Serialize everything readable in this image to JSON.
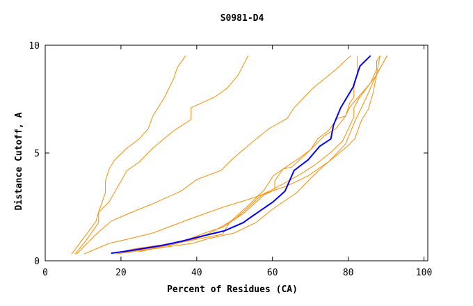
{
  "chart_data": {
    "type": "line",
    "title": "S0981-D4",
    "xlabel": "Percent of Residues (CA)",
    "ylabel": "Distance Cutoff, A",
    "xlim": [
      0,
      101
    ],
    "ylim": [
      0,
      10
    ],
    "xticks": [
      "0",
      "20",
      "40",
      "60",
      "80",
      "100"
    ],
    "yticks": [
      "0",
      "5",
      "10"
    ],
    "grid": false,
    "colors": {
      "highlight": "#0000ff",
      "others": "#ff8c00"
    },
    "series": [
      {
        "color": "#ff8c00",
        "points": [
          [
            6.97,
            0.32
          ],
          [
            11.4,
            1.35
          ],
          [
            13.4,
            1.84
          ],
          [
            14.1,
            2.26
          ],
          [
            15.9,
            3.16
          ],
          [
            15.9,
            3.71
          ],
          [
            16.9,
            4.26
          ],
          [
            18.3,
            4.68
          ],
          [
            21.6,
            5.23
          ],
          [
            24.8,
            5.65
          ],
          [
            27.2,
            6.13
          ],
          [
            28.4,
            6.71
          ],
          [
            31.5,
            7.58
          ],
          [
            33.9,
            8.45
          ],
          [
            34.9,
            8.97
          ],
          [
            37.1,
            9.52
          ]
        ]
      },
      {
        "color": "#ff8c00",
        "points": [
          [
            7.9,
            0.32
          ],
          [
            10.6,
            0.9
          ],
          [
            14.1,
            1.77
          ],
          [
            14.1,
            2.26
          ],
          [
            16.9,
            2.74
          ],
          [
            21.6,
            4.19
          ],
          [
            24.8,
            4.58
          ],
          [
            28.4,
            5.23
          ],
          [
            33.9,
            6.03
          ],
          [
            38.5,
            6.55
          ],
          [
            38.5,
            7.1
          ],
          [
            44.6,
            7.58
          ],
          [
            48.0,
            8.0
          ],
          [
            50.9,
            8.61
          ],
          [
            53.6,
            9.52
          ]
        ]
      },
      {
        "color": "#ff8c00",
        "points": [
          [
            8.3,
            0.32
          ],
          [
            13.8,
            1.29
          ],
          [
            17.4,
            1.84
          ],
          [
            21.6,
            2.16
          ],
          [
            28.4,
            2.65
          ],
          [
            35.8,
            3.23
          ],
          [
            40.0,
            3.77
          ],
          [
            46.4,
            4.19
          ],
          [
            49.2,
            4.68
          ],
          [
            52.8,
            5.23
          ],
          [
            57.2,
            5.87
          ],
          [
            59.1,
            6.13
          ],
          [
            63.9,
            6.61
          ],
          [
            65.7,
            7.1
          ],
          [
            70.6,
            8.0
          ],
          [
            76.7,
            8.87
          ],
          [
            80.7,
            9.52
          ]
        ]
      },
      {
        "color": "#ff8c00",
        "points": [
          [
            10.3,
            0.32
          ],
          [
            16.9,
            0.81
          ],
          [
            22.4,
            1.03
          ],
          [
            28.4,
            1.29
          ],
          [
            38.2,
            1.94
          ],
          [
            46.8,
            2.48
          ],
          [
            54.1,
            2.87
          ],
          [
            58.2,
            3.13
          ],
          [
            63.9,
            3.48
          ],
          [
            69.4,
            3.94
          ],
          [
            74.9,
            4.61
          ],
          [
            79.3,
            5.42
          ],
          [
            81.7,
            6.45
          ],
          [
            84.8,
            7.58
          ],
          [
            87.2,
            8.55
          ],
          [
            90.3,
            9.52
          ]
        ]
      },
      {
        "color": "#ff8c00",
        "points": [
          [
            18.7,
            0.32
          ],
          [
            38.9,
            0.81
          ],
          [
            43.1,
            1.03
          ],
          [
            49.9,
            1.29
          ],
          [
            55.6,
            1.77
          ],
          [
            60.2,
            2.42
          ],
          [
            66.4,
            3.16
          ],
          [
            69.4,
            3.71
          ],
          [
            73.8,
            4.45
          ],
          [
            79.8,
            5.32
          ],
          [
            81.7,
            5.65
          ],
          [
            83.5,
            6.52
          ],
          [
            85.3,
            7.03
          ],
          [
            86.6,
            7.81
          ],
          [
            88.4,
            9.52
          ]
        ]
      },
      {
        "color": "#ff8c00",
        "points": [
          [
            19.3,
            0.39
          ],
          [
            23.5,
            0.55
          ],
          [
            35.8,
            0.87
          ],
          [
            43.1,
            1.35
          ],
          [
            46.8,
            1.55
          ],
          [
            52.3,
            2.19
          ],
          [
            57.8,
            3.06
          ],
          [
            60.6,
            3.29
          ],
          [
            60.6,
            3.71
          ],
          [
            62.8,
            4.26
          ],
          [
            66.4,
            4.68
          ],
          [
            70.1,
            5.16
          ],
          [
            71.9,
            5.65
          ],
          [
            74.9,
            6.06
          ],
          [
            77.1,
            6.61
          ],
          [
            79.3,
            6.71
          ],
          [
            80.4,
            7.32
          ],
          [
            81.5,
            7.58
          ],
          [
            81.5,
            8.06
          ],
          [
            82.4,
            8.71
          ],
          [
            82.4,
            9.52
          ]
        ]
      },
      {
        "color": "#ff8c00",
        "points": [
          [
            20.6,
            0.39
          ],
          [
            32.7,
            0.71
          ],
          [
            41.8,
            1.13
          ],
          [
            46.2,
            1.55
          ],
          [
            50.5,
            1.99
          ],
          [
            57.2,
            3.06
          ],
          [
            63.3,
            3.61
          ],
          [
            67.5,
            4.03
          ],
          [
            71.2,
            4.45
          ],
          [
            75.6,
            5.06
          ],
          [
            78.5,
            5.55
          ],
          [
            81.5,
            6.68
          ],
          [
            81.5,
            7.1
          ],
          [
            82.9,
            7.55
          ],
          [
            85.9,
            8.26
          ],
          [
            87.5,
            8.87
          ],
          [
            87.5,
            9.26
          ],
          [
            88.4,
            9.52
          ]
        ]
      },
      {
        "color": "#ff8c00",
        "points": [
          [
            24.8,
            0.42
          ],
          [
            37.1,
            0.9
          ],
          [
            46.8,
            1.23
          ],
          [
            48.6,
            1.77
          ],
          [
            54.1,
            2.65
          ],
          [
            57.8,
            3.29
          ],
          [
            60.2,
            3.94
          ],
          [
            62.8,
            4.26
          ],
          [
            65.1,
            4.35
          ],
          [
            70.1,
            5.16
          ],
          [
            73.8,
            5.81
          ],
          [
            76.7,
            6.13
          ],
          [
            79.3,
            6.71
          ],
          [
            80.4,
            7.13
          ],
          [
            82.6,
            7.58
          ],
          [
            85.3,
            8.13
          ],
          [
            87.2,
            8.55
          ],
          [
            90.3,
            9.52
          ]
        ]
      },
      {
        "color": "#0000ff",
        "highlight": true,
        "points": [
          [
            17.4,
            0.35
          ],
          [
            21.5,
            0.45
          ],
          [
            30.8,
            0.71
          ],
          [
            35.8,
            0.9
          ],
          [
            41.8,
            1.16
          ],
          [
            47.3,
            1.39
          ],
          [
            52.3,
            1.77
          ],
          [
            54.1,
            2.0
          ],
          [
            60.2,
            2.74
          ],
          [
            63.3,
            3.23
          ],
          [
            65.7,
            4.19
          ],
          [
            69.4,
            4.68
          ],
          [
            72.5,
            5.32
          ],
          [
            75.4,
            5.65
          ],
          [
            76.1,
            6.29
          ],
          [
            78.0,
            7.1
          ],
          [
            81.3,
            8.06
          ],
          [
            82.6,
            8.77
          ],
          [
            83.1,
            9.03
          ],
          [
            85.9,
            9.52
          ]
        ]
      }
    ]
  }
}
